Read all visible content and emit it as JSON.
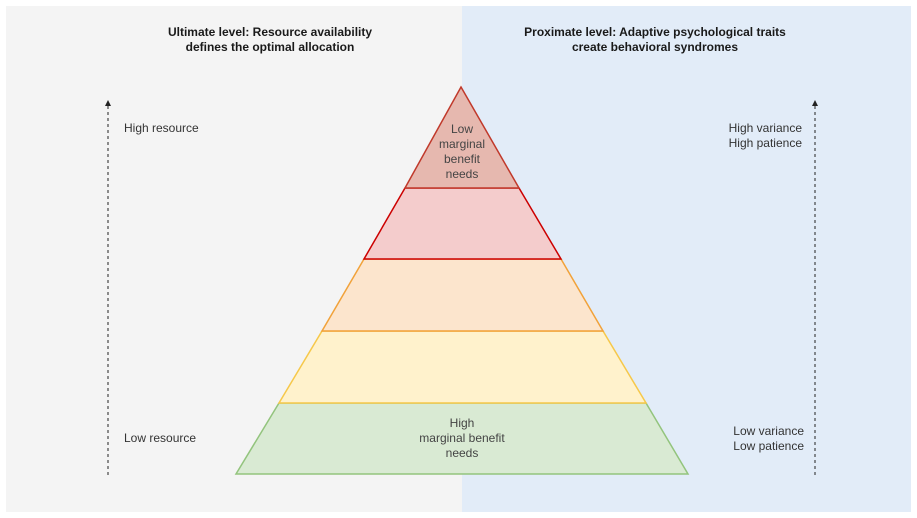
{
  "left_panel": {
    "heading_line1": "Ultimate level: Resource availability",
    "heading_line2": "defines the optimal allocation",
    "top_label": "High resource",
    "bottom_label": "Low resource"
  },
  "right_panel": {
    "heading_line1": "Proximate level: Adaptive psychological traits",
    "heading_line2": "create behavioral syndromes",
    "top_label_line1": "High variance",
    "top_label_line2": "High patience",
    "bottom_label_line1": "Low variance",
    "bottom_label_line2": "Low patience"
  },
  "pyramid": {
    "top_tier": {
      "line1": "Low",
      "line2": "marginal",
      "line3": "benefit",
      "line4": "needs"
    },
    "bottom_tier": {
      "line1": "High",
      "line2": "marginal benefit",
      "line3": "needs"
    },
    "colors": {
      "tier1_fill": "#e6b8af",
      "tier1_stroke": "#c0392b",
      "tier2_fill": "#f4cccc",
      "tier2_stroke": "#cc0000",
      "tier3_fill": "#fce5cd",
      "tier3_stroke": "#f1a23a",
      "tier4_fill": "#fff2cc",
      "tier4_stroke": "#f6c84a",
      "tier5_fill": "#d9ead3",
      "tier5_stroke": "#93c47d"
    }
  },
  "colors": {
    "left_background": "#f4f4f4",
    "right_background": "#e2ecf8"
  }
}
